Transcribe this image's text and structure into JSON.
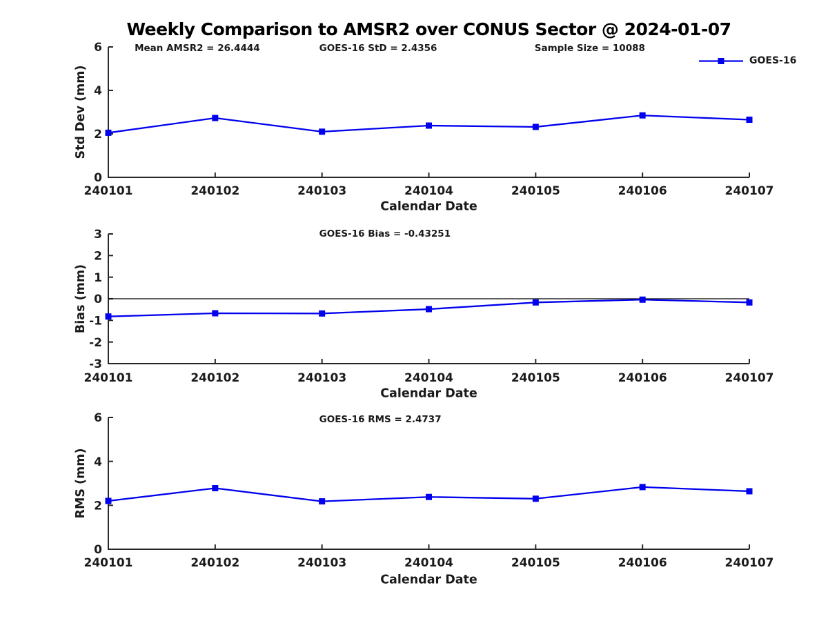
{
  "title": "Weekly Comparison to AMSR2 over CONUS Sector @ 2024-01-07",
  "legend": {
    "label": "GOES-16",
    "series_color": "#0000EE"
  },
  "colors": {
    "series": "#0000EE",
    "axis": "#262626",
    "text": "#1a1a1a",
    "zero_line": "#000000",
    "background": "#ffffff"
  },
  "chart_data": [
    {
      "type": "line",
      "id": "std-dev",
      "annotations": [
        "Mean AMSR2 = 26.4444",
        "GOES-16 StD = 2.4356",
        "Sample Size = 10088"
      ],
      "xlabel": "Calendar Date",
      "ylabel": "Std Dev (mm)",
      "categories": [
        "240101",
        "240102",
        "240103",
        "240104",
        "240105",
        "240106",
        "240107"
      ],
      "yticks": [
        0,
        2,
        4,
        6
      ],
      "ylim": [
        0,
        6
      ],
      "zero_line": false,
      "legend_position": "top-right",
      "grid": false,
      "series": [
        {
          "name": "GOES-16",
          "color": "#0000EE",
          "marker": "square",
          "values": [
            2.05,
            2.73,
            2.1,
            2.38,
            2.32,
            2.85,
            2.65
          ]
        }
      ]
    },
    {
      "type": "line",
      "id": "bias",
      "annotations": [
        "GOES-16 Bias  = -0.43251"
      ],
      "xlabel": "Calendar Date",
      "ylabel": "Bias (mm)",
      "categories": [
        "240101",
        "240102",
        "240103",
        "240104",
        "240105",
        "240106",
        "240107"
      ],
      "yticks": [
        3,
        2,
        1,
        0,
        -1,
        -2,
        -3
      ],
      "ylim": [
        -3,
        3
      ],
      "zero_line": true,
      "grid": false,
      "series": [
        {
          "name": "GOES-16",
          "color": "#0000EE",
          "marker": "square",
          "values": [
            -0.82,
            -0.67,
            -0.68,
            -0.48,
            -0.17,
            -0.04,
            -0.17
          ]
        }
      ]
    },
    {
      "type": "line",
      "id": "rms",
      "annotations": [
        "GOES-16 RMS = 2.4737"
      ],
      "xlabel": "Calendar Date",
      "ylabel": "RMS (mm)",
      "categories": [
        "240101",
        "240102",
        "240103",
        "240104",
        "240105",
        "240106",
        "240107"
      ],
      "yticks": [
        0,
        2,
        4,
        6
      ],
      "ylim": [
        0,
        6
      ],
      "zero_line": false,
      "grid": false,
      "series": [
        {
          "name": "GOES-16",
          "color": "#0000EE",
          "marker": "square",
          "values": [
            2.2,
            2.78,
            2.18,
            2.38,
            2.3,
            2.83,
            2.64
          ]
        }
      ]
    }
  ]
}
